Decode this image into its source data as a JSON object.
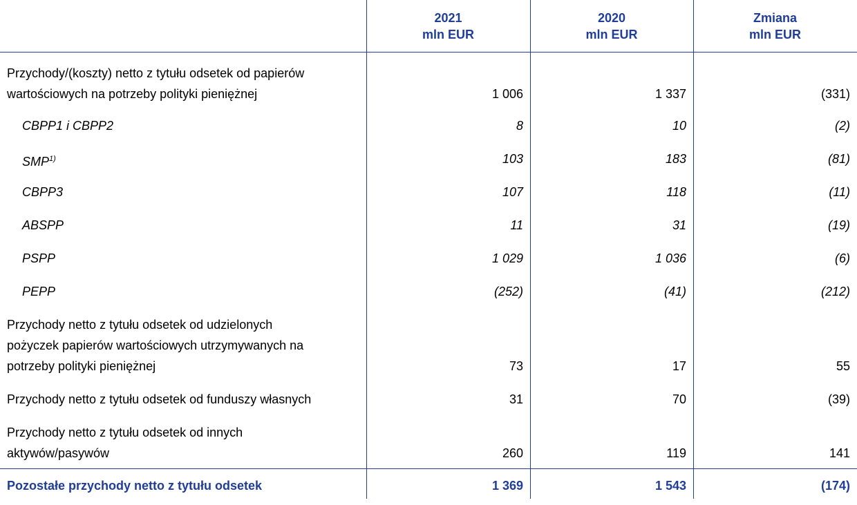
{
  "table": {
    "header": [
      {
        "year": "2021",
        "unit": "mln EUR"
      },
      {
        "year": "2020",
        "unit": "mln EUR"
      },
      {
        "year": "Zmiana",
        "unit": "mln EUR"
      }
    ],
    "rows": [
      {
        "label": [
          "Przychody/(koszty) netto z tytułu odsetek od papierów",
          "wartościowych na potrzeby polityki pieniężnej"
        ],
        "values": [
          "1 006",
          "1 337",
          "(331)"
        ],
        "items": [
          {
            "label": "CBPP1 i CBPP2",
            "values": [
              "8",
              "10",
              "(2)"
            ]
          },
          {
            "label": "SMP",
            "note": "1)",
            "values": [
              "103",
              "183",
              "(81)"
            ]
          },
          {
            "label": "CBPP3",
            "values": [
              "107",
              "118",
              "(11)"
            ]
          },
          {
            "label": "ABSPP",
            "values": [
              "11",
              "31",
              "(19)"
            ]
          },
          {
            "label": "PSPP",
            "values": [
              "1 029",
              "1 036",
              "(6)"
            ]
          },
          {
            "label": "PEPP",
            "values": [
              "(252)",
              "(41)",
              "(212)"
            ]
          }
        ]
      },
      {
        "label": [
          "Przychody netto z tytułu odsetek od udzielonych",
          "pożyczek papierów wartościowych utrzymywanych na",
          "potrzeby polityki pieniężnej"
        ],
        "values": [
          "73",
          "17",
          "55"
        ]
      },
      {
        "label": [
          "Przychody netto z tytułu odsetek od funduszy własnych"
        ],
        "values": [
          "31",
          "70",
          "(39)"
        ]
      },
      {
        "label": [
          "Przychody netto z tytułu odsetek od innych",
          "aktywów/pasywów"
        ],
        "values": [
          "260",
          "119",
          "141"
        ]
      }
    ],
    "total": {
      "label": "Pozostałe przychody netto z tytułu odsetek",
      "values": [
        "1 369",
        "1 543",
        "(174)"
      ]
    }
  }
}
